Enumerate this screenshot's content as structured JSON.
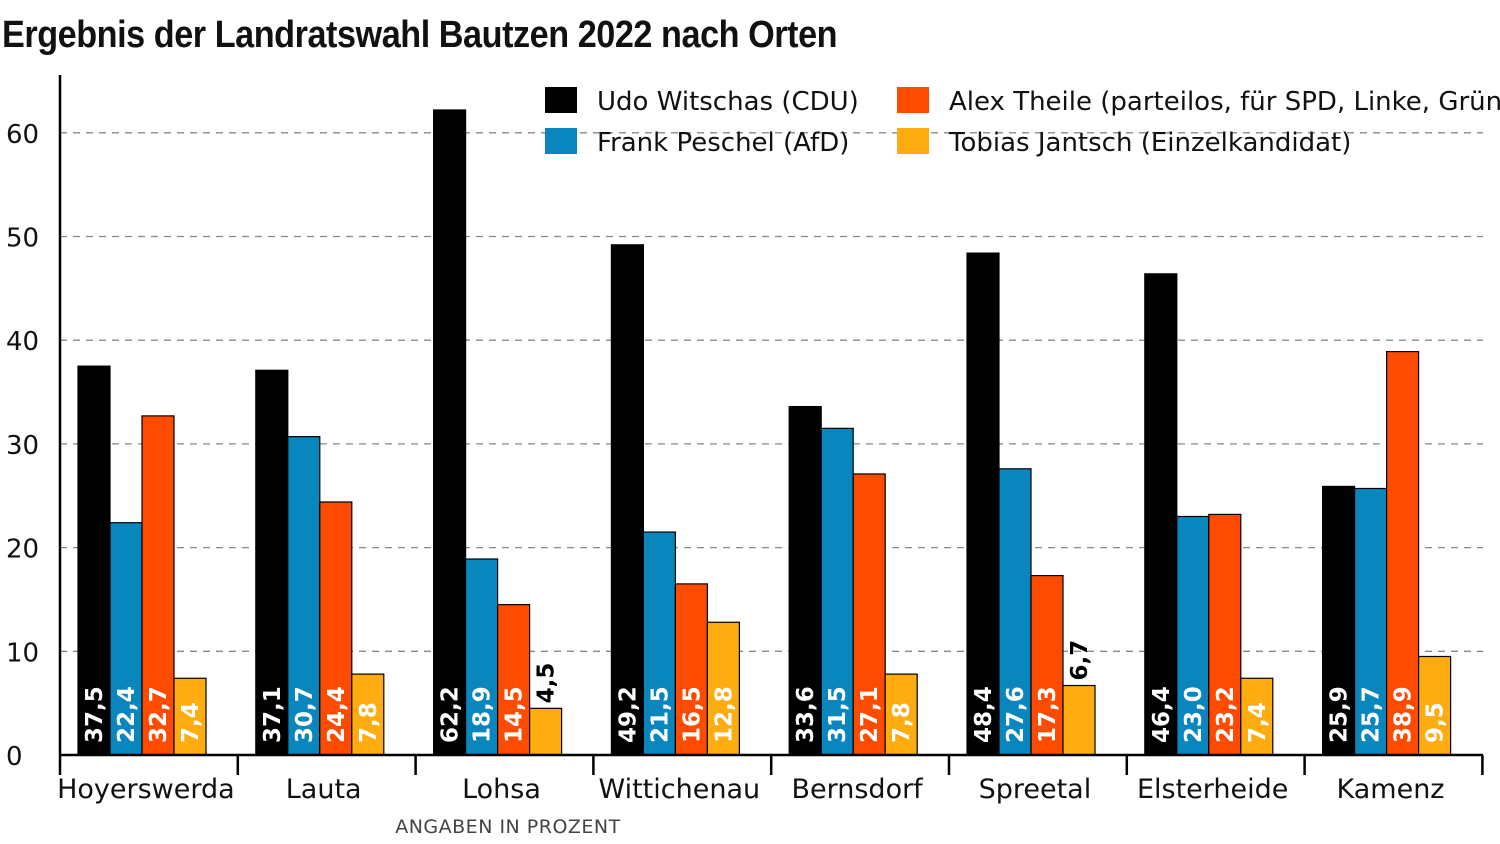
{
  "chart_data": {
    "type": "bar",
    "title": "Ergebnis der Landratswahl Bautzen 2022 nach Orten",
    "footnote": "ANGABEN IN PROZENT",
    "xlabel": "",
    "ylabel": "",
    "ylim": [
      0,
      65
    ],
    "yticks": [
      0,
      10,
      20,
      30,
      40,
      50,
      60
    ],
    "grid": true,
    "legend_position": "top-right",
    "categories": [
      "Hoyerswerda",
      "Lauta",
      "Lohsa",
      "Wittichenau",
      "Bernsdorf",
      "Spreetal",
      "Elsterheide",
      "Kamenz"
    ],
    "series": [
      {
        "name": "Udo Witschas (CDU)",
        "color": "#000000",
        "label_color": "#ffffff",
        "values": [
          37.5,
          37.1,
          62.2,
          49.2,
          33.6,
          48.4,
          46.4,
          25.9
        ],
        "labels": [
          "37,5",
          "37,1",
          "62,2",
          "49,2",
          "33,6",
          "48,4",
          "46,4",
          "25,9"
        ]
      },
      {
        "name": "Frank Peschel (AfD)",
        "color": "#0a86bf",
        "label_color": "#ffffff",
        "values": [
          22.4,
          30.7,
          18.9,
          21.5,
          31.5,
          27.6,
          23.0,
          25.7
        ],
        "labels": [
          "22,4",
          "30,7",
          "18,9",
          "21,5",
          "31,5",
          "27,6",
          "23,0",
          "25,7"
        ]
      },
      {
        "name": "Alex Theile (parteilos, für SPD, Linke, Grüne)",
        "color": "#ff4b00",
        "label_color": "#ffffff",
        "values": [
          32.7,
          24.4,
          14.5,
          16.5,
          27.1,
          17.3,
          23.2,
          38.9
        ],
        "labels": [
          "32,7",
          "24,4",
          "14,5",
          "16,5",
          "27,1",
          "17,3",
          "23,2",
          "38,9"
        ]
      },
      {
        "name": "Tobias Jantsch (Einzelkandidat)",
        "color": "#ffac10",
        "label_color": "#ffffff",
        "values": [
          7.4,
          7.8,
          4.5,
          12.8,
          7.8,
          6.7,
          7.4,
          9.5
        ],
        "labels": [
          "7,4",
          "7,8",
          "4,5",
          "12,8",
          "7,8",
          "6,7",
          "7,4",
          "9,5"
        ]
      }
    ]
  }
}
